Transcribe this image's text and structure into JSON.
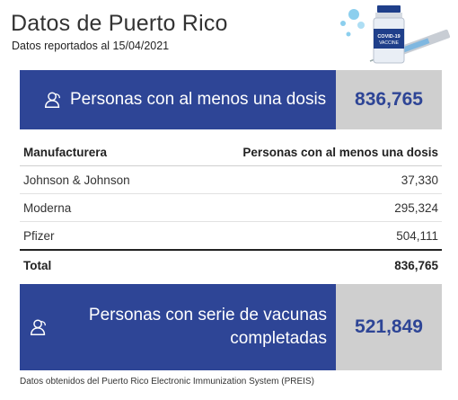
{
  "header": {
    "title": "Datos de Puerto Rico",
    "subtitle": "Datos reportados al 15/04/2021"
  },
  "illustration": {
    "icon": "vaccine-vial-syringe-icon",
    "vial_label": "COVID-19 VACCINE"
  },
  "banner_one_dose": {
    "icon": "user-icon",
    "label": "Personas con al menos una dosis",
    "value": "836,765"
  },
  "table": {
    "columns": [
      "Manufacturera",
      "Personas con al menos una dosis"
    ],
    "rows": [
      {
        "name": "Johnson & Johnson",
        "value": "37,330"
      },
      {
        "name": "Moderna",
        "value": "295,324"
      },
      {
        "name": "Pfizer",
        "value": "504,111"
      }
    ],
    "total": {
      "name": "Total",
      "value": "836,765"
    }
  },
  "banner_complete": {
    "icon": "user-icon",
    "label_line1": "Personas con serie de vacunas",
    "label_line2": "completadas",
    "value": "521,849"
  },
  "footnote": "Datos obtenidos del Puerto Rico Electronic Immunization System (PREIS)",
  "colors": {
    "banner_blue": "#2e4596",
    "value_bg": "#cfcfcf"
  }
}
